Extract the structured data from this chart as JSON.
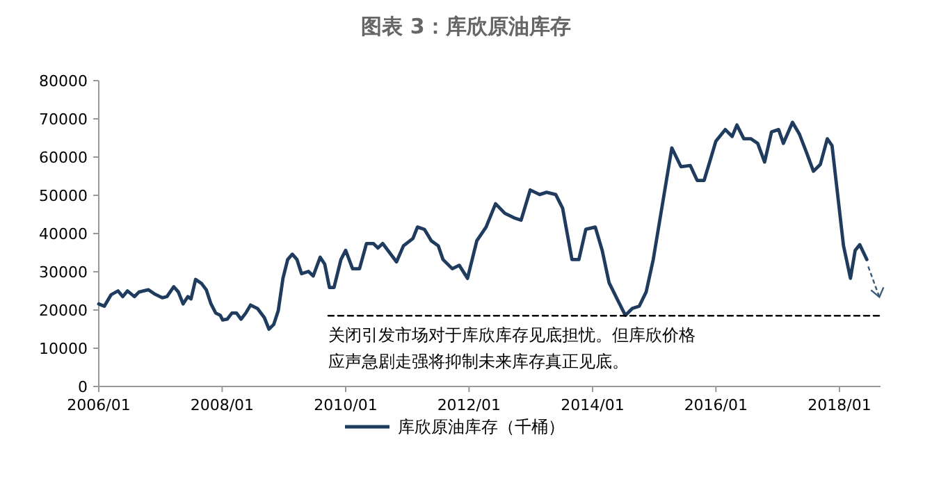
{
  "chart_data": {
    "type": "line",
    "title": "图表 3：库欣原油库存",
    "legend": "bottom",
    "grid": false,
    "series": [
      {
        "name": "库欣原油库存（千桶）",
        "color": "#1f3c5e",
        "x": [
          "2006-01-01",
          "2006-02-03",
          "2006-03-15",
          "2006-04-25",
          "2006-05-23",
          "2006-06-20",
          "2006-07-31",
          "2006-08-27",
          "2006-10-21",
          "2006-12-01",
          "2007-01-12",
          "2007-02-08",
          "2007-03-21",
          "2007-04-17",
          "2007-05-15",
          "2007-06-12",
          "2007-07-01",
          "2007-07-28",
          "2007-09-02",
          "2007-09-29",
          "2007-10-27",
          "2007-11-24",
          "2007-12-21",
          "2008-01-04",
          "2008-01-31",
          "2008-02-28",
          "2008-03-26",
          "2008-04-22",
          "2008-05-20",
          "2008-06-17",
          "2008-07-28",
          "2008-09-07",
          "2008-10-04",
          "2008-11-01",
          "2008-11-28",
          "2008-12-26",
          "2009-01-23",
          "2009-02-19",
          "2009-03-19",
          "2009-04-15",
          "2009-05-26",
          "2009-06-23",
          "2009-08-03",
          "2009-08-30",
          "2009-09-27",
          "2009-10-24",
          "2009-12-04",
          "2010-01-01",
          "2010-02-11",
          "2010-03-24",
          "2010-05-04",
          "2010-06-14",
          "2010-07-11",
          "2010-08-08",
          "2010-09-18",
          "2010-10-29",
          "2010-12-09",
          "2011-02-03",
          "2011-03-02",
          "2011-04-12",
          "2011-05-23",
          "2011-07-03",
          "2011-07-31",
          "2011-09-24",
          "2011-11-04",
          "2011-12-23",
          "2012-02-16",
          "2012-04-11",
          "2012-06-06",
          "2012-07-31",
          "2012-09-24",
          "2012-11-04",
          "2012-12-28",
          "2013-02-22",
          "2013-04-04",
          "2013-05-28",
          "2013-07-08",
          "2013-09-01",
          "2013-10-12",
          "2013-11-22",
          "2014-01-17",
          "2014-02-27",
          "2014-04-09",
          "2014-06-03",
          "2014-07-14",
          "2014-08-24",
          "2014-10-04",
          "2014-11-14",
          "2014-12-26",
          "2015-02-19",
          "2015-04-15",
          "2015-06-08",
          "2015-08-02",
          "2015-09-12",
          "2015-10-23",
          "2015-12-03",
          "2016-01-01",
          "2016-02-25",
          "2016-04-06",
          "2016-05-04",
          "2016-06-14",
          "2016-07-25",
          "2016-09-04",
          "2016-10-15",
          "2016-11-25",
          "2017-01-06",
          "2017-02-03",
          "2017-03-29",
          "2017-05-09",
          "2017-06-20",
          "2017-07-31",
          "2017-09-10",
          "2017-10-21",
          "2017-11-18",
          "2017-12-15",
          "2018-01-25",
          "2018-03-07",
          "2018-04-04",
          "2018-05-01",
          "2018-06-12"
        ],
        "values": [
          21600,
          21000,
          24000,
          25000,
          23500,
          25000,
          23500,
          24700,
          25300,
          24100,
          23200,
          23500,
          26100,
          24700,
          21600,
          23500,
          22900,
          28000,
          26900,
          25300,
          21600,
          19200,
          18600,
          17400,
          17600,
          19200,
          19200,
          17600,
          19200,
          21300,
          20400,
          18000,
          15000,
          16200,
          19800,
          28300,
          33200,
          34600,
          33200,
          29500,
          30100,
          28900,
          33800,
          32000,
          25900,
          25900,
          33200,
          35600,
          30800,
          30800,
          37400,
          37400,
          36200,
          37400,
          35000,
          32600,
          36800,
          38700,
          41700,
          41100,
          38100,
          36800,
          33200,
          30800,
          31700,
          28300,
          38100,
          41700,
          47800,
          45300,
          44100,
          43500,
          51400,
          50200,
          50800,
          50200,
          46600,
          33200,
          33200,
          41100,
          41700,
          35600,
          27100,
          22200,
          18600,
          20400,
          21000,
          24700,
          33200,
          47800,
          62400,
          57500,
          57800,
          53900,
          53900,
          59900,
          64200,
          67200,
          65400,
          68400,
          64800,
          64800,
          63600,
          58700,
          66600,
          67200,
          63600,
          69100,
          66000,
          61200,
          56300,
          58100,
          64800,
          63000,
          52600,
          36800,
          28300,
          35600,
          37100,
          33200
        ]
      },
      {
        "type": "line",
        "line_style": "dashed",
        "color": "#000000",
        "x": [
          "2009-09-20",
          "2018-09-01"
        ],
        "values": [
          18500,
          18500
        ]
      }
    ],
    "xlim": [
      "2006-01",
      "2018-09"
    ],
    "xticks": [
      {
        "value": "2006-01",
        "label": "2006/01"
      },
      {
        "value": "2008-01",
        "label": "2008/01"
      },
      {
        "value": "2010-01",
        "label": "2010/01"
      },
      {
        "value": "2012-01",
        "label": "2012/01"
      },
      {
        "value": "2014-01",
        "label": "2014/01"
      },
      {
        "value": "2016-01",
        "label": "2016/01"
      },
      {
        "value": "2018-01",
        "label": "2018/01"
      }
    ],
    "ylim": [
      0,
      80000
    ],
    "yticks": [
      0,
      10000,
      20000,
      30000,
      40000,
      50000,
      60000,
      70000,
      80000
    ],
    "annotations": [
      "关闭引发市场对于库欣库存见底担忧。但库欣价格",
      "应声急剧走强将抑制未来库存真正见底。"
    ]
  }
}
